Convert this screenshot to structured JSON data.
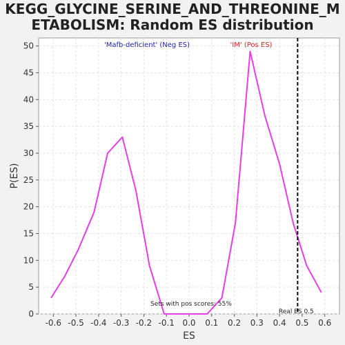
{
  "chart_data": {
    "type": "line",
    "title_lines": [
      "KEGG_GLYCINE_SERINE_AND_THREONINE_M",
      "ETABOLISM: Random ES distribution"
    ],
    "xlabel": "ES",
    "ylabel": "P(ES)",
    "xlim": [
      -0.665,
      0.665
    ],
    "ylim": [
      0,
      51.5
    ],
    "xticks": [
      "-0.6",
      "-0.5",
      "-0.4",
      "-0.3",
      "-0.2",
      "-0.1",
      "0.0",
      "0.1",
      "0.2",
      "0.3",
      "0.4",
      "0.5",
      "0.6"
    ],
    "xtick_values": [
      -0.6,
      -0.5,
      -0.4,
      -0.3,
      -0.2,
      -0.1,
      0.0,
      0.1,
      0.2,
      0.3,
      0.4,
      0.5,
      0.6
    ],
    "yticks": [
      "0",
      "5",
      "10",
      "15",
      "20",
      "25",
      "30",
      "35",
      "40",
      "45",
      "50"
    ],
    "ytick_values": [
      0,
      5,
      10,
      15,
      20,
      25,
      30,
      35,
      40,
      45,
      50
    ],
    "grid": true,
    "series": [
      {
        "color": "#e83ce8",
        "x": [
          -0.61,
          -0.55,
          -0.49,
          -0.42,
          -0.36,
          -0.295,
          -0.235,
          -0.175,
          -0.11,
          -0.05,
          0.015,
          0.08,
          0.145,
          0.205,
          0.27,
          0.335,
          0.4,
          0.46,
          0.52,
          0.585
        ],
        "y": [
          3,
          7,
          12,
          19,
          30,
          33,
          23,
          9,
          0,
          0,
          0,
          0,
          3,
          17,
          49,
          37,
          28,
          17,
          9,
          4
        ]
      }
    ],
    "vline": {
      "x": 0.48,
      "label": "Real ES 0.5",
      "color": "#000000"
    },
    "legend_neg": {
      "text": "'Mafb-deficient' (Neg ES)",
      "color": "#2222aa"
    },
    "legend_pos": {
      "text": "'IM' (Pos ES)",
      "color": "#dd2222"
    },
    "annotation": "Sets with pos scores: 55%"
  }
}
